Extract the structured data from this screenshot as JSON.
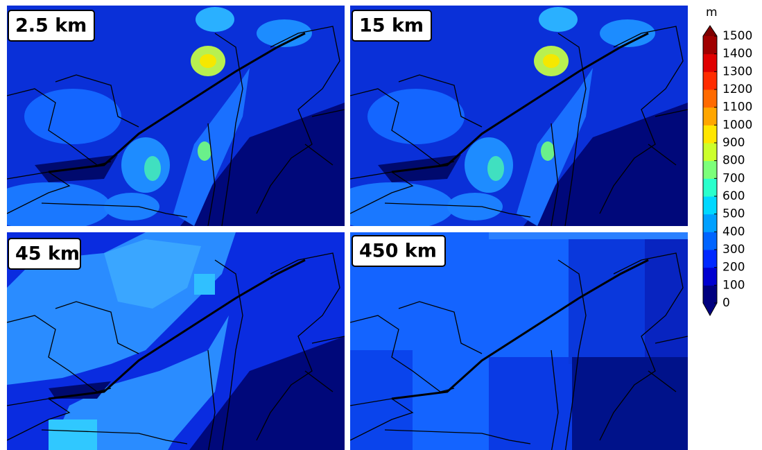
{
  "panels": [
    {
      "label": "2.5 km"
    },
    {
      "label": "15 km"
    },
    {
      "label": "45 km"
    },
    {
      "label": "450 km"
    }
  ],
  "colorbar": {
    "unit": "m",
    "ticks": [
      0,
      100,
      200,
      300,
      400,
      500,
      600,
      700,
      800,
      900,
      1000,
      1100,
      1200,
      1300,
      1400,
      1500
    ],
    "colors": [
      "#00007f",
      "#0000d0",
      "#0028ff",
      "#0064ff",
      "#00a0ff",
      "#00d8ff",
      "#2affcc",
      "#7cff7a",
      "#ccff2c",
      "#ffe600",
      "#ffa600",
      "#ff6a00",
      "#ff2c00",
      "#e00000",
      "#a00000"
    ],
    "under_color": "#00007f",
    "over_color": "#7f0000"
  }
}
